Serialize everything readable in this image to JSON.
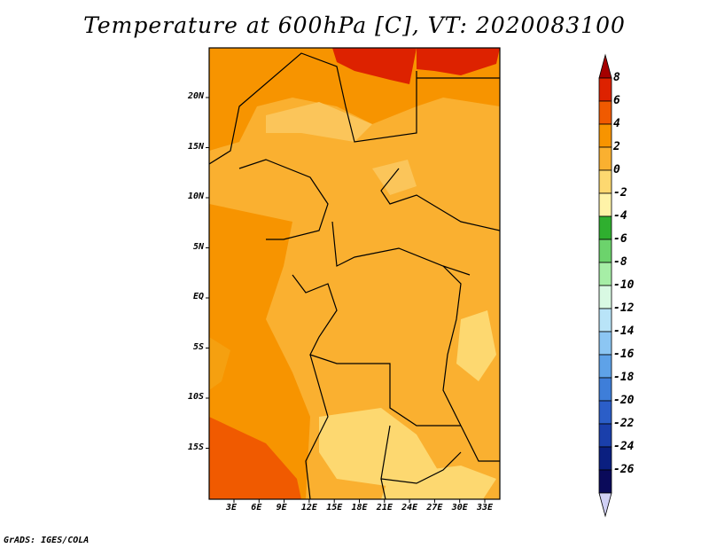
{
  "title": "Temperature at 600hPa [C], VT: 2020083100",
  "credit": "GrADS: IGES/COLA",
  "map": {
    "type": "contour-map",
    "variable": "Temperature at 600hPa",
    "units": "C",
    "valid_time": "2020083100",
    "lon_labels": [
      "3E",
      "6E",
      "9E",
      "12E",
      "15E",
      "18E",
      "21E",
      "24E",
      "27E",
      "30E",
      "33E"
    ],
    "lat_labels": [
      "20N",
      "15N",
      "10N",
      "5N",
      "EQ",
      "5S",
      "10S",
      "15S"
    ],
    "lon_range": [
      0,
      34.5
    ],
    "lat_range": [
      -20,
      24.5
    ]
  },
  "colorbar": {
    "levels": [
      "8",
      "6",
      "4",
      "2",
      "0",
      "-2",
      "-4",
      "-6",
      "-8",
      "-10",
      "-12",
      "-14",
      "-16",
      "-18",
      "-20",
      "-22",
      "-24",
      "-26"
    ],
    "colors": [
      "#a50000",
      "#dd2200",
      "#f05a00",
      "#f79400",
      "#fab030",
      "#fdd870",
      "#fff3a8",
      "#2faf2f",
      "#6cd36c",
      "#a6eea6",
      "#d9f9e3",
      "#b9e4f8",
      "#8cc6f3",
      "#5ea2e8",
      "#3e7ed9",
      "#2b5ec8",
      "#1a3fab",
      "#0a1f80",
      "#0a0a5a",
      "#d0d0f5"
    ]
  }
}
